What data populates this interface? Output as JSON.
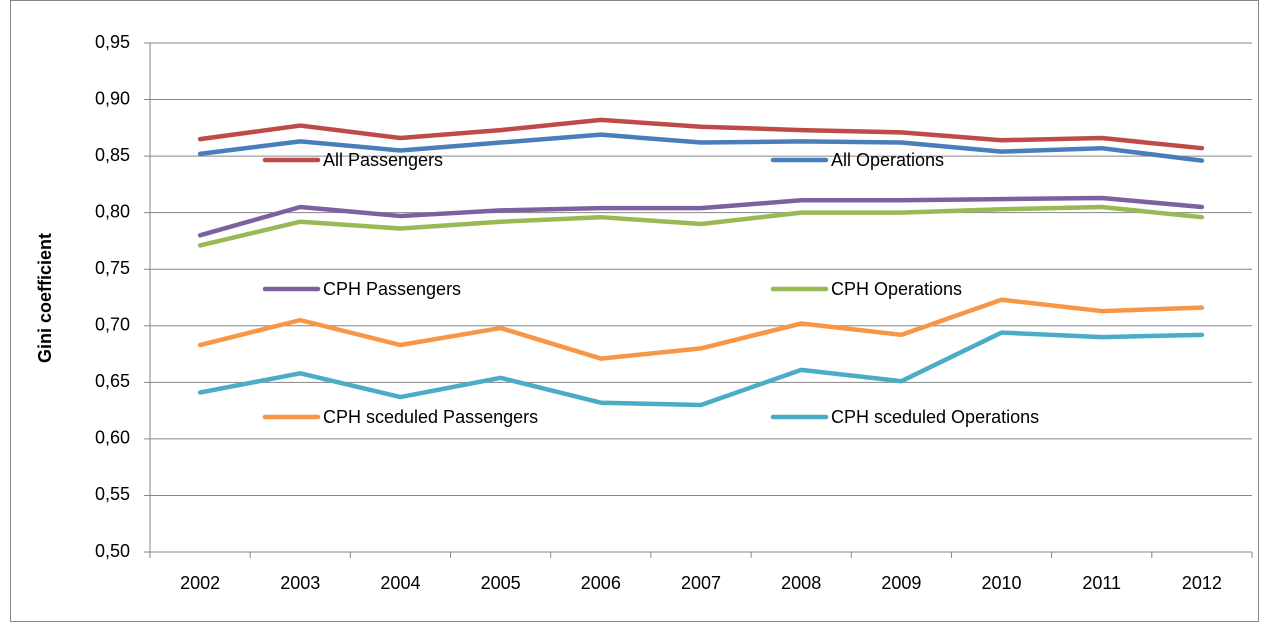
{
  "chart_data": {
    "type": "line",
    "y_label": "Gini coefficient",
    "categories": [
      "2002",
      "2003",
      "2004",
      "2005",
      "2006",
      "2007",
      "2008",
      "2009",
      "2010",
      "2011",
      "2012"
    ],
    "ylim": [
      0.5,
      0.95
    ],
    "yticks": [
      {
        "value": 0.5,
        "label": "0,50"
      },
      {
        "value": 0.55,
        "label": "0,55"
      },
      {
        "value": 0.6,
        "label": "0,60"
      },
      {
        "value": 0.65,
        "label": "0,65"
      },
      {
        "value": 0.7,
        "label": "0,70"
      },
      {
        "value": 0.75,
        "label": "0,75"
      },
      {
        "value": 0.8,
        "label": "0,80"
      },
      {
        "value": 0.85,
        "label": "0,85"
      },
      {
        "value": 0.9,
        "label": "0,90"
      },
      {
        "value": 0.95,
        "label": "0,95"
      }
    ],
    "grid": true,
    "series": [
      {
        "name": "All Passengers",
        "color": "#be4b48",
        "values": [
          0.865,
          0.877,
          0.866,
          0.873,
          0.882,
          0.876,
          0.873,
          0.871,
          0.864,
          0.866,
          0.857
        ]
      },
      {
        "name": "All Operations",
        "color": "#4a7ebb",
        "values": [
          0.852,
          0.863,
          0.855,
          0.862,
          0.869,
          0.862,
          0.863,
          0.862,
          0.854,
          0.857,
          0.846
        ]
      },
      {
        "name": "CPH Passengers",
        "color": "#7d60a0",
        "values": [
          0.78,
          0.805,
          0.797,
          0.802,
          0.804,
          0.804,
          0.811,
          0.811,
          0.812,
          0.813,
          0.805
        ]
      },
      {
        "name": "CPH Operations",
        "color": "#98b954",
        "values": [
          0.771,
          0.792,
          0.786,
          0.792,
          0.796,
          0.79,
          0.8,
          0.8,
          0.803,
          0.805,
          0.796
        ]
      },
      {
        "name": "CPH sceduled Passengers",
        "color": "#f79646",
        "values": [
          0.683,
          0.705,
          0.683,
          0.698,
          0.671,
          0.68,
          0.702,
          0.692,
          0.723,
          0.713,
          0.716
        ]
      },
      {
        "name": "CPH sceduled Operations",
        "color": "#4bacc6",
        "values": [
          0.641,
          0.658,
          0.637,
          0.654,
          0.632,
          0.63,
          0.661,
          0.651,
          0.694,
          0.69,
          0.692
        ]
      }
    ]
  }
}
